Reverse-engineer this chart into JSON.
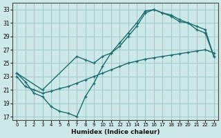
{
  "xlabel": "Humidex (Indice chaleur)",
  "bg_color": "#cde8e8",
  "grid_color": "#a0c8c8",
  "line_color": "#1a6b6b",
  "xlim": [
    -0.5,
    23.5
  ],
  "ylim": [
    16.5,
    34
  ],
  "yticks": [
    17,
    19,
    21,
    23,
    25,
    27,
    29,
    31,
    33
  ],
  "xticks": [
    0,
    1,
    2,
    3,
    4,
    5,
    6,
    7,
    8,
    9,
    10,
    11,
    12,
    13,
    14,
    15,
    16,
    17,
    18,
    19,
    20,
    21,
    22,
    23
  ],
  "curve1_x": [
    0,
    1,
    2,
    3,
    4,
    5,
    6,
    7,
    8,
    9,
    10,
    11,
    12,
    13,
    14,
    15,
    16,
    17,
    18,
    19,
    20,
    21,
    22,
    23
  ],
  "curve1_y": [
    23.5,
    22.2,
    20.5,
    20.0,
    18.5,
    17.8,
    17.5,
    17.0,
    20.0,
    22.0,
    24.5,
    26.5,
    28.0,
    29.5,
    31.0,
    32.8,
    33.0,
    32.5,
    32.2,
    31.5,
    31.0,
    30.0,
    29.5,
    26.0
  ],
  "curve2_x": [
    0,
    1,
    2,
    3,
    4,
    5,
    6,
    7,
    8,
    9,
    10,
    11,
    12,
    13,
    14,
    15,
    16,
    17,
    18,
    19,
    20,
    21,
    22,
    23
  ],
  "curve2_y": [
    23.0,
    21.5,
    21.0,
    20.5,
    20.8,
    21.2,
    21.5,
    22.0,
    22.5,
    23.0,
    23.5,
    24.0,
    24.5,
    25.0,
    25.3,
    25.6,
    25.8,
    26.0,
    26.2,
    26.4,
    26.6,
    26.8,
    27.0,
    26.5
  ],
  "curve3_x": [
    0,
    3,
    7,
    8,
    9,
    10,
    11,
    12,
    13,
    14,
    15,
    16,
    17,
    18,
    19,
    20,
    21,
    22,
    23
  ],
  "curve3_y": [
    23.5,
    21.0,
    26.0,
    25.5,
    25.0,
    26.0,
    26.5,
    27.5,
    29.0,
    30.5,
    32.5,
    33.0,
    32.5,
    32.0,
    31.2,
    31.0,
    30.5,
    30.0,
    26.0
  ]
}
